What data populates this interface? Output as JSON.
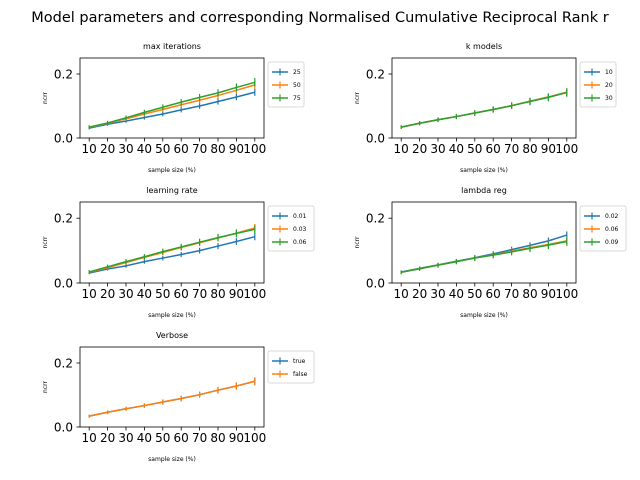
{
  "suptitle": "Model parameters and corresponding Normalised Cumulative Reciprocal Rank r",
  "colors": {
    "series": [
      "#1f77b4",
      "#ff7f0e",
      "#2ca02c"
    ]
  },
  "chart_data": [
    {
      "type": "line",
      "title": "max iterations",
      "xlabel": "sample size (%)",
      "ylabel": "ncrr",
      "x": [
        10,
        20,
        30,
        40,
        50,
        60,
        70,
        80,
        90,
        100
      ],
      "xticks": [
        "10",
        "20",
        "30",
        "40",
        "50",
        "60",
        "70",
        "80",
        "90",
        "100"
      ],
      "yticks": [
        "0.0",
        "0.2"
      ],
      "xlim": [
        5,
        105
      ],
      "ylim": [
        0,
        0.25
      ],
      "legend_position": "outside-right",
      "error_bars": true,
      "series": [
        {
          "name": "25",
          "values": [
            0.031,
            0.043,
            0.053,
            0.064,
            0.075,
            0.088,
            0.1,
            0.114,
            0.128,
            0.143
          ]
        },
        {
          "name": "50",
          "values": [
            0.033,
            0.046,
            0.06,
            0.075,
            0.089,
            0.104,
            0.118,
            0.133,
            0.149,
            0.166
          ]
        },
        {
          "name": "75",
          "values": [
            0.034,
            0.047,
            0.063,
            0.08,
            0.096,
            0.112,
            0.127,
            0.141,
            0.158,
            0.174
          ]
        }
      ]
    },
    {
      "type": "line",
      "title": "k models",
      "xlabel": "sample size (%)",
      "ylabel": "ncrr",
      "x": [
        10,
        20,
        30,
        40,
        50,
        60,
        70,
        80,
        90,
        100
      ],
      "xticks": [
        "10",
        "20",
        "30",
        "40",
        "50",
        "60",
        "70",
        "80",
        "90",
        "100"
      ],
      "yticks": [
        "0.0",
        "0.2"
      ],
      "xlim": [
        5,
        105
      ],
      "ylim": [
        0,
        0.25
      ],
      "legend_position": "outside-right",
      "error_bars": true,
      "series": [
        {
          "name": "10",
          "values": [
            0.034,
            0.046,
            0.057,
            0.067,
            0.078,
            0.089,
            0.101,
            0.115,
            0.128,
            0.143
          ]
        },
        {
          "name": "20",
          "values": [
            0.034,
            0.046,
            0.057,
            0.067,
            0.078,
            0.089,
            0.101,
            0.115,
            0.128,
            0.143
          ]
        },
        {
          "name": "30",
          "values": [
            0.034,
            0.046,
            0.057,
            0.067,
            0.078,
            0.089,
            0.101,
            0.114,
            0.127,
            0.142
          ]
        }
      ]
    },
    {
      "type": "line",
      "title": "learning rate",
      "xlabel": "sample size (%)",
      "ylabel": "ncrr",
      "x": [
        10,
        20,
        30,
        40,
        50,
        60,
        70,
        80,
        90,
        100
      ],
      "xticks": [
        "10",
        "20",
        "30",
        "40",
        "50",
        "60",
        "70",
        "80",
        "90",
        "100"
      ],
      "yticks": [
        "0.0",
        "0.2"
      ],
      "xlim": [
        5,
        105
      ],
      "ylim": [
        0,
        0.25
      ],
      "legend_position": "outside-right",
      "error_bars": true,
      "series": [
        {
          "name": "0.01",
          "values": [
            0.031,
            0.043,
            0.053,
            0.066,
            0.077,
            0.088,
            0.1,
            0.114,
            0.128,
            0.143
          ]
        },
        {
          "name": "0.03",
          "values": [
            0.033,
            0.047,
            0.063,
            0.079,
            0.094,
            0.11,
            0.124,
            0.139,
            0.154,
            0.17
          ]
        },
        {
          "name": "0.06",
          "values": [
            0.034,
            0.05,
            0.066,
            0.081,
            0.097,
            0.111,
            0.126,
            0.14,
            0.153,
            0.166
          ]
        }
      ]
    },
    {
      "type": "line",
      "title": "lambda reg",
      "xlabel": "sample size (%)",
      "ylabel": "ncrr",
      "x": [
        10,
        20,
        30,
        40,
        50,
        60,
        70,
        80,
        90,
        100
      ],
      "xticks": [
        "10",
        "20",
        "30",
        "40",
        "50",
        "60",
        "70",
        "80",
        "90",
        "100"
      ],
      "yticks": [
        "0.0",
        "0.2"
      ],
      "xlim": [
        5,
        105
      ],
      "ylim": [
        0,
        0.25
      ],
      "legend_position": "outside-right",
      "error_bars": true,
      "series": [
        {
          "name": "0.02",
          "values": [
            0.034,
            0.045,
            0.056,
            0.067,
            0.078,
            0.09,
            0.103,
            0.116,
            0.13,
            0.148
          ]
        },
        {
          "name": "0.06",
          "values": [
            0.033,
            0.044,
            0.055,
            0.066,
            0.077,
            0.087,
            0.098,
            0.109,
            0.119,
            0.13
          ]
        },
        {
          "name": "0.09",
          "values": [
            0.033,
            0.044,
            0.055,
            0.066,
            0.077,
            0.086,
            0.096,
            0.107,
            0.117,
            0.128
          ]
        }
      ]
    },
    {
      "type": "line",
      "title": "Verbose",
      "xlabel": "sample size (%)",
      "ylabel": "ncrr",
      "x": [
        10,
        20,
        30,
        40,
        50,
        60,
        70,
        80,
        90,
        100
      ],
      "xticks": [
        "10",
        "20",
        "30",
        "40",
        "50",
        "60",
        "70",
        "80",
        "90",
        "100"
      ],
      "yticks": [
        "0.0",
        "0.2"
      ],
      "xlim": [
        5,
        105
      ],
      "ylim": [
        0,
        0.25
      ],
      "legend_position": "outside-right",
      "error_bars": true,
      "series": [
        {
          "name": "true",
          "values": [
            0.034,
            0.046,
            0.057,
            0.067,
            0.078,
            0.089,
            0.101,
            0.115,
            0.128,
            0.143
          ]
        },
        {
          "name": "false",
          "values": [
            0.034,
            0.046,
            0.057,
            0.067,
            0.078,
            0.089,
            0.101,
            0.115,
            0.128,
            0.143
          ]
        }
      ]
    }
  ]
}
